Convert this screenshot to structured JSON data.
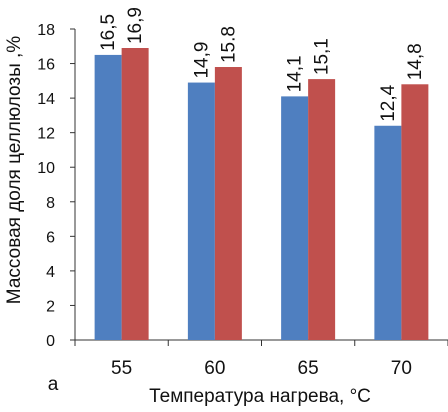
{
  "chart_data": {
    "type": "bar",
    "panel_label": "а",
    "xlabel": "Температура нагрева, °С",
    "ylabel": "Массовая доля целлюлозы ,%",
    "categories": [
      "55",
      "60",
      "65",
      "70"
    ],
    "ylim": [
      0,
      18
    ],
    "yticks": [
      "0",
      "2",
      "4",
      "6",
      "8",
      "10",
      "12",
      "14",
      "16",
      "18"
    ],
    "grid": false,
    "legend": "none",
    "series": [
      {
        "values": [
          16.5,
          14.9,
          14.1,
          12.4
        ],
        "value_labels": [
          "16,5",
          "14,9",
          "14,1",
          "12,4"
        ],
        "color": "#4f7fc0"
      },
      {
        "values": [
          16.9,
          15.8,
          15.1,
          14.8
        ],
        "value_labels": [
          "16,9",
          "15.8",
          "15,1",
          "14,8"
        ],
        "color": "#c0504d"
      }
    ]
  }
}
